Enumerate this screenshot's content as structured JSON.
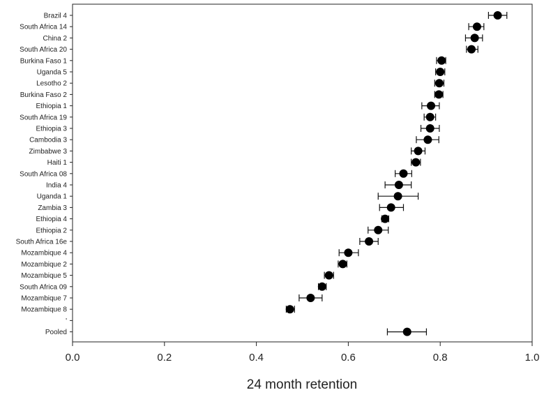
{
  "chart_data": {
    "type": "scatter",
    "xlabel": "24 month retention",
    "ylabel": "",
    "title": "",
    "xlim": [
      0.0,
      1.0
    ],
    "xticks": [
      "0.0",
      "0.2",
      "0.4",
      "0.6",
      "0.8",
      "1.0"
    ],
    "grid": false,
    "points": [
      {
        "label": "Brazil 4",
        "value": 0.925,
        "lo": 0.905,
        "hi": 0.945
      },
      {
        "label": "South Africa 14",
        "value": 0.88,
        "lo": 0.862,
        "hi": 0.895
      },
      {
        "label": "China 2",
        "value": 0.875,
        "lo": 0.855,
        "hi": 0.892
      },
      {
        "label": "South Africa 20",
        "value": 0.868,
        "lo": 0.857,
        "hi": 0.882
      },
      {
        "label": "Burkina Faso 1",
        "value": 0.803,
        "lo": 0.792,
        "hi": 0.812
      },
      {
        "label": "Uganda 5",
        "value": 0.8,
        "lo": 0.79,
        "hi": 0.81
      },
      {
        "label": "Lesotho 2",
        "value": 0.798,
        "lo": 0.788,
        "hi": 0.808
      },
      {
        "label": "Burkina Faso 2",
        "value": 0.797,
        "lo": 0.788,
        "hi": 0.806
      },
      {
        "label": "Ethiopia 1",
        "value": 0.78,
        "lo": 0.76,
        "hi": 0.798
      },
      {
        "label": "South Africa 19",
        "value": 0.778,
        "lo": 0.765,
        "hi": 0.79
      },
      {
        "label": "Ethiopia 3",
        "value": 0.778,
        "lo": 0.758,
        "hi": 0.798
      },
      {
        "label": "Cambodia 3",
        "value": 0.773,
        "lo": 0.748,
        "hi": 0.797
      },
      {
        "label": "Zimbabwe 3",
        "value": 0.752,
        "lo": 0.737,
        "hi": 0.767
      },
      {
        "label": "Haiti 1",
        "value": 0.747,
        "lo": 0.737,
        "hi": 0.757
      },
      {
        "label": "South Africa 08",
        "value": 0.72,
        "lo": 0.702,
        "hi": 0.738
      },
      {
        "label": "India 4",
        "value": 0.71,
        "lo": 0.68,
        "hi": 0.737
      },
      {
        "label": "Uganda 1",
        "value": 0.708,
        "lo": 0.665,
        "hi": 0.752
      },
      {
        "label": "Zambia 3",
        "value": 0.693,
        "lo": 0.668,
        "hi": 0.72
      },
      {
        "label": "Ethiopia 4",
        "value": 0.68,
        "lo": 0.673,
        "hi": 0.688
      },
      {
        "label": "Ethiopia 2",
        "value": 0.665,
        "lo": 0.643,
        "hi": 0.687
      },
      {
        "label": "South Africa 16e",
        "value": 0.645,
        "lo": 0.625,
        "hi": 0.665
      },
      {
        "label": "Mozambique 4",
        "value": 0.6,
        "lo": 0.58,
        "hi": 0.622
      },
      {
        "label": "Mozambique 2",
        "value": 0.588,
        "lo": 0.578,
        "hi": 0.597
      },
      {
        "label": "Mozambique 5",
        "value": 0.558,
        "lo": 0.548,
        "hi": 0.568
      },
      {
        "label": "South Africa 09",
        "value": 0.543,
        "lo": 0.535,
        "hi": 0.552
      },
      {
        "label": "Mozambique 7",
        "value": 0.518,
        "lo": 0.493,
        "hi": 0.543
      },
      {
        "label": "Mozambique 8",
        "value": 0.473,
        "lo": 0.465,
        "hi": 0.483
      },
      {
        "label": "'",
        "value": null,
        "lo": null,
        "hi": null
      },
      {
        "label": "Pooled",
        "value": 0.728,
        "lo": 0.685,
        "hi": 0.77
      }
    ]
  }
}
